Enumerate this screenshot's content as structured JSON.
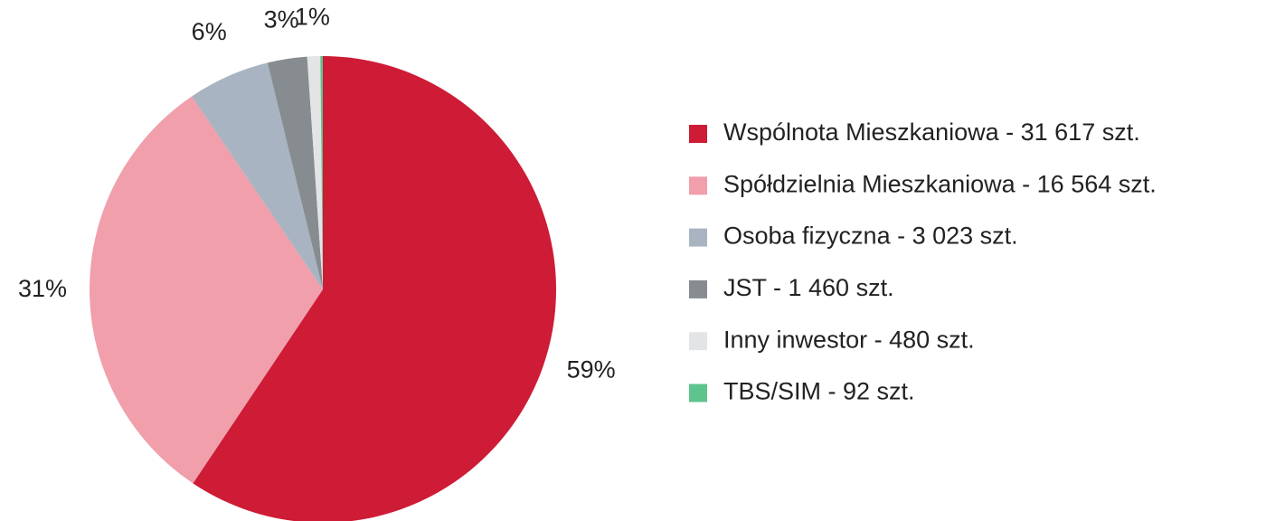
{
  "chart_data": {
    "type": "pie",
    "categories": [
      "Wspólnota Mieszkaniowa - 31 617 szt.",
      "Spółdzielnia Mieszkaniowa - 16 564 szt.",
      "Osoba fizyczna - 3 023 szt.",
      "JST - 1 460 szt.",
      "Inny inwestor - 480 szt.",
      "TBS/SIM - 92 szt."
    ],
    "values": [
      59.39,
      31.11,
      5.68,
      2.74,
      0.9,
      0.17
    ],
    "value_labels": [
      "59%",
      "31%",
      "6%",
      "3%",
      "1%",
      null
    ],
    "colors": [
      "#ce1b36",
      "#f09fab",
      "#a8b4c1",
      "#878c91",
      "#e3e4e6",
      "#5ec48e"
    ],
    "legend": "right"
  }
}
